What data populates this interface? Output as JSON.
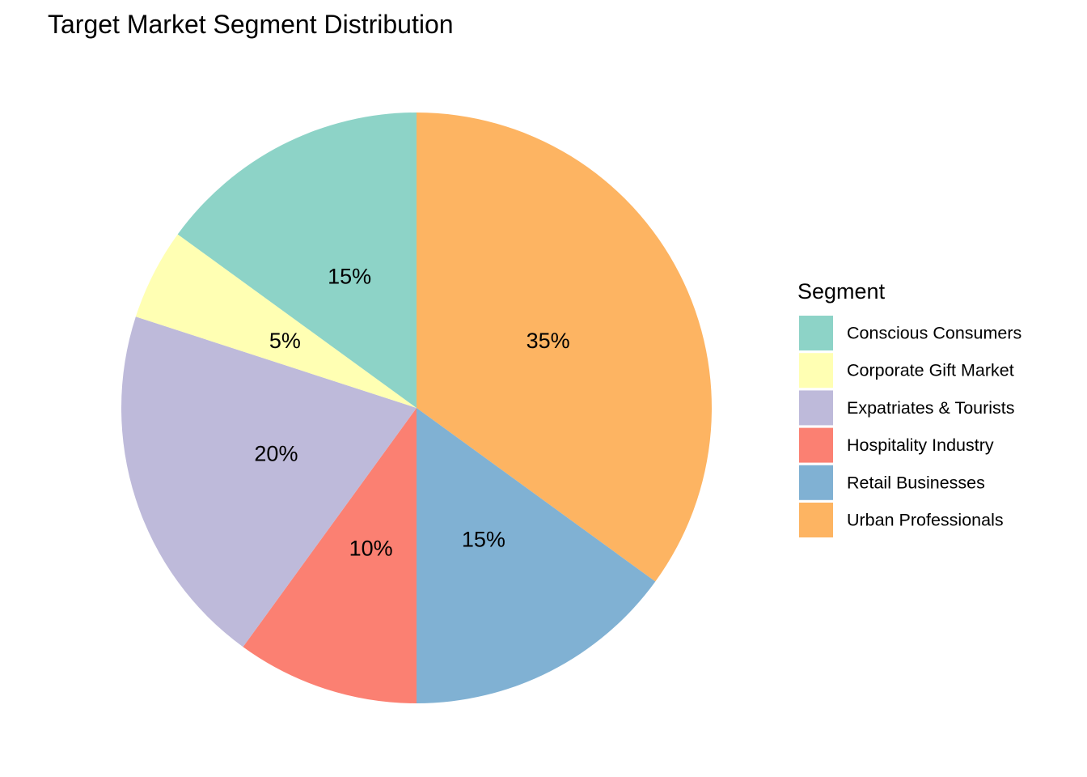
{
  "chart_data": {
    "type": "pie",
    "title": "Target Market Segment Distribution",
    "legend": {
      "title": "Segment",
      "placement": "right"
    },
    "start_angle_deg": 0,
    "direction": "clockwise",
    "label_format": "percent",
    "slices": [
      {
        "name": "Urban Professionals",
        "value": 35,
        "label": "35%",
        "color": "#FDB462"
      },
      {
        "name": "Retail Businesses",
        "value": 15,
        "label": "15%",
        "color": "#80B1D3"
      },
      {
        "name": "Hospitality Industry",
        "value": 10,
        "label": "10%",
        "color": "#FB8072"
      },
      {
        "name": "Expatriates & Tourists",
        "value": 20,
        "label": "20%",
        "color": "#BEBADA"
      },
      {
        "name": "Corporate Gift Market",
        "value": 5,
        "label": "5%",
        "color": "#FFFFB3"
      },
      {
        "name": "Conscious Consumers",
        "value": 15,
        "label": "15%",
        "color": "#8DD3C7"
      }
    ],
    "legend_order": [
      "Conscious Consumers",
      "Corporate Gift Market",
      "Expatriates & Tourists",
      "Hospitality Industry",
      "Retail Businesses",
      "Urban Professionals"
    ]
  }
}
